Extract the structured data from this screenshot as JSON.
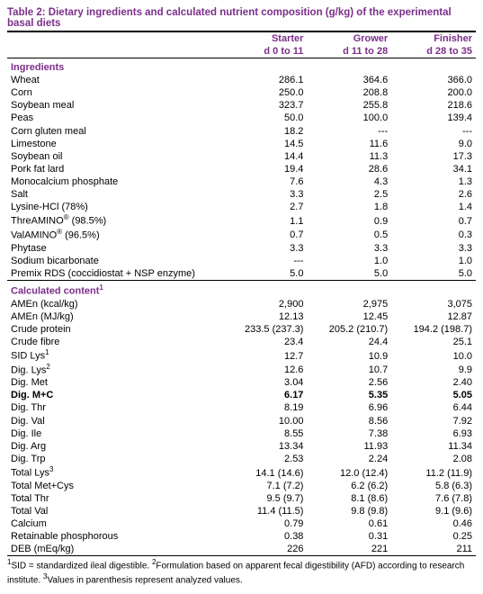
{
  "table_title": "Table 2: Dietary ingredients and calculated nutrient composition (g/kg) of the experimental basal diets",
  "columns": [
    {
      "name": "Starter",
      "range": "d 0 to 11"
    },
    {
      "name": "Grower",
      "range": "d 11 to 28"
    },
    {
      "name": "Finisher",
      "range": "d 28 to 35"
    }
  ],
  "section_ingredients": "Ingredients",
  "ingredients": [
    {
      "label": "Wheat",
      "v": [
        "286.1",
        "364.6",
        "366.0"
      ]
    },
    {
      "label": "Corn",
      "v": [
        "250.0",
        "208.8",
        "200.0"
      ]
    },
    {
      "label": "Soybean meal",
      "v": [
        "323.7",
        "255.8",
        "218.6"
      ]
    },
    {
      "label": "Peas",
      "v": [
        "50.0",
        "100.0",
        "139.4"
      ]
    },
    {
      "label": "Corn gluten meal",
      "v": [
        "18.2",
        "---",
        "---"
      ]
    },
    {
      "label": "Limestone",
      "v": [
        "14.5",
        "11.6",
        "9.0"
      ]
    },
    {
      "label": "Soybean oil",
      "v": [
        "14.4",
        "11.3",
        "17.3"
      ]
    },
    {
      "label": "Pork fat lard",
      "v": [
        "19.4",
        "28.6",
        "34.1"
      ]
    },
    {
      "label": "Monocalcium phosphate",
      "v": [
        "7.6",
        "4.3",
        "1.3"
      ]
    },
    {
      "label": "Salt",
      "v": [
        "3.3",
        "2.5",
        "2.6"
      ]
    },
    {
      "label": "Lysine-HCl (78%)",
      "v": [
        "2.7",
        "1.8",
        "1.4"
      ]
    },
    {
      "label_html": "ThreAMINO<sup>®</sup> (98.5%)",
      "v": [
        "1.1",
        "0.9",
        "0.7"
      ]
    },
    {
      "label_html": "ValAMINO<sup>®</sup> (96.5%)",
      "v": [
        "0.7",
        "0.5",
        "0.3"
      ]
    },
    {
      "label": "Phytase",
      "v": [
        "3.3",
        "3.3",
        "3.3"
      ]
    },
    {
      "label": "Sodium bicarbonate",
      "v": [
        "---",
        "1.0",
        "1.0"
      ]
    },
    {
      "label": "Premix RDS (coccidiostat + NSP enzyme)",
      "v": [
        "5.0",
        "5.0",
        "5.0"
      ]
    }
  ],
  "section_calculated_html": "Calculated content<sup>1</sup>",
  "calculated": [
    {
      "label": "AMEn (kcal/kg)",
      "v": [
        "2,900",
        "2,975",
        "3,075"
      ]
    },
    {
      "label": "AMEn (MJ/kg)",
      "v": [
        "12.13",
        "12.45",
        "12.87"
      ]
    },
    {
      "label": "Crude protein",
      "v": [
        "233.5 (237.3)",
        "205.2 (210.7)",
        "194.2 (198.7)"
      ]
    },
    {
      "label": "Crude fibre",
      "v": [
        "23.4",
        "24.4",
        "25.1"
      ]
    },
    {
      "label_html": "SID Lys<sup>1</sup>",
      "v": [
        "12.7",
        "10.9",
        "10.0"
      ]
    },
    {
      "label_html": "Dig. Lys<sup>2</sup>",
      "v": [
        "12.6",
        "10.7",
        "9.9"
      ]
    },
    {
      "label": "Dig. Met",
      "v": [
        "3.04",
        "2.56",
        "2.40"
      ]
    },
    {
      "label_html": "Dig. <b>M+C</b>",
      "bold": true,
      "v": [
        "6.17",
        "5.35",
        "5.05"
      ]
    },
    {
      "label": "Dig. Thr",
      "v": [
        "8.19",
        "6.96",
        "6.44"
      ]
    },
    {
      "label": "Dig. Val",
      "v": [
        "10.00",
        "8.56",
        "7.92"
      ]
    },
    {
      "label": "Dig. Ile",
      "v": [
        "8.55",
        "7.38",
        "6.93"
      ]
    },
    {
      "label": "Dig. Arg",
      "v": [
        "13.34",
        "11.93",
        "11.34"
      ]
    },
    {
      "label": "Dig. Trp",
      "v": [
        "2.53",
        "2.24",
        "2.08"
      ]
    },
    {
      "label_html": "Total Lys<sup>3</sup>",
      "v": [
        "14.1 (14.6)",
        "12.0 (12.4)",
        "11.2 (11.9)"
      ]
    },
    {
      "label": "Total Met+Cys",
      "v": [
        "7.1 (7.2)",
        "6.2 (6.2)",
        "5.8 (6.3)"
      ]
    },
    {
      "label": "Total Thr",
      "v": [
        "9.5 (9.7)",
        "8.1 (8.6)",
        "7.6 (7.8)"
      ]
    },
    {
      "label": "Total Val",
      "v": [
        "11.4 (11.5)",
        "9.8 (9.8)",
        "9.1 (9.6)"
      ]
    },
    {
      "label": "Calcium",
      "v": [
        "0.79",
        "0.61",
        "0.46"
      ]
    },
    {
      "label": "Retainable phosphorous",
      "v": [
        "0.38",
        "0.31",
        "0.25"
      ]
    },
    {
      "label": "DEB (mEq/kg)",
      "v": [
        "226",
        "221",
        "211"
      ]
    }
  ],
  "footnote_html": "<sup>1</sup>SID = standardized ileal digestible. <sup>2</sup>Formulation based on apparent fecal digestibility (AFD) according to research institute. <sup>3</sup>Values in parenthesis represent analyzed values.",
  "colors": {
    "accent": "#7b2e8a",
    "text": "#000000",
    "bg": "#ffffff"
  }
}
